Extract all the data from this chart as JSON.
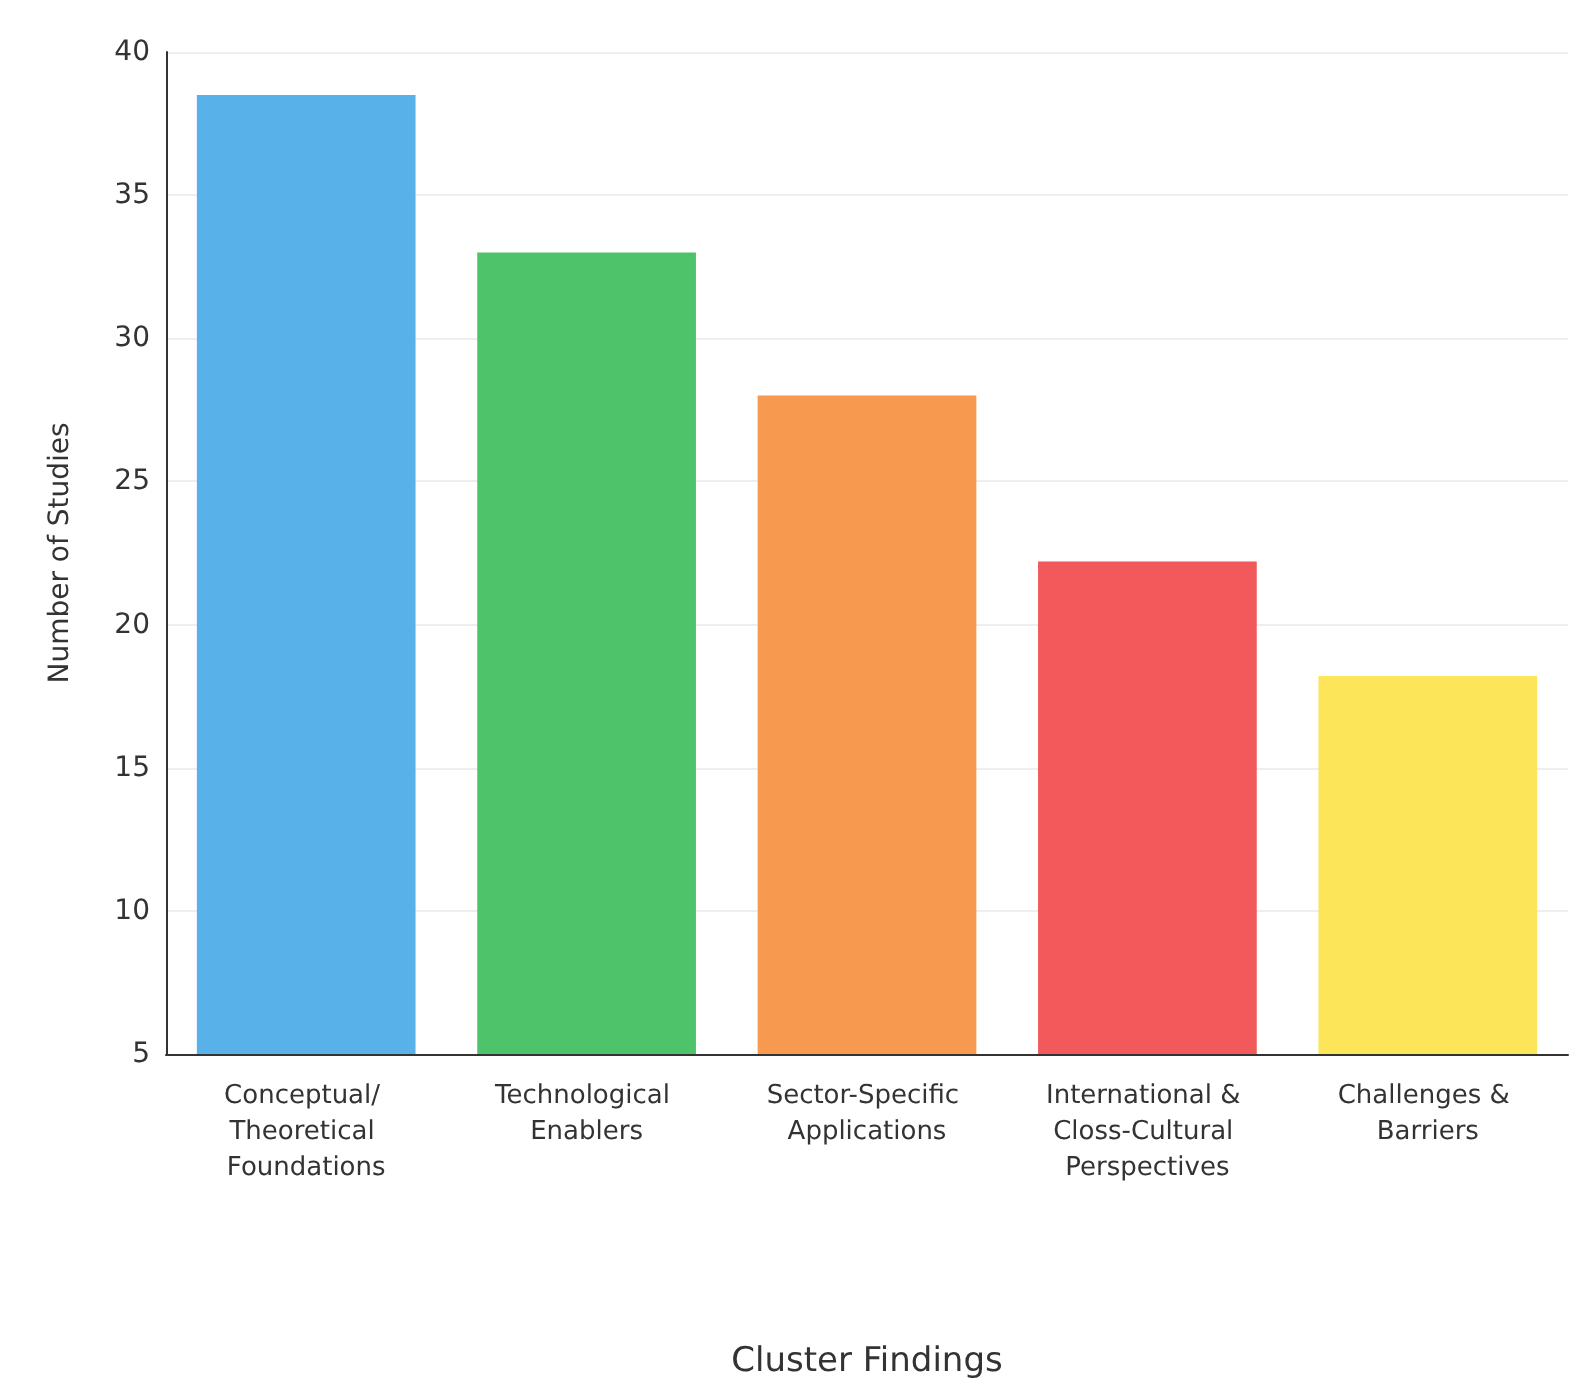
{
  "chart_data": {
    "type": "bar",
    "xlabel": "Cluster Findings",
    "ylabel": "Number of Studies",
    "categories": [
      "Conceptual/ Theoretical Foundations",
      "Technological Enablers",
      "Sector-Specific Applications",
      "International & Closs-Cultural Perspectives",
      "Challenges & Barriers"
    ],
    "values": [
      38.5,
      33,
      28,
      22.2,
      18.2
    ],
    "colors": [
      "#58b1e9",
      "#4fc36a",
      "#f7994f",
      "#f2595a",
      "#fde55a"
    ],
    "ylim": [
      5,
      40
    ],
    "yticks": [
      5,
      10,
      15,
      20,
      25,
      30,
      35,
      40
    ],
    "grid": "y"
  }
}
